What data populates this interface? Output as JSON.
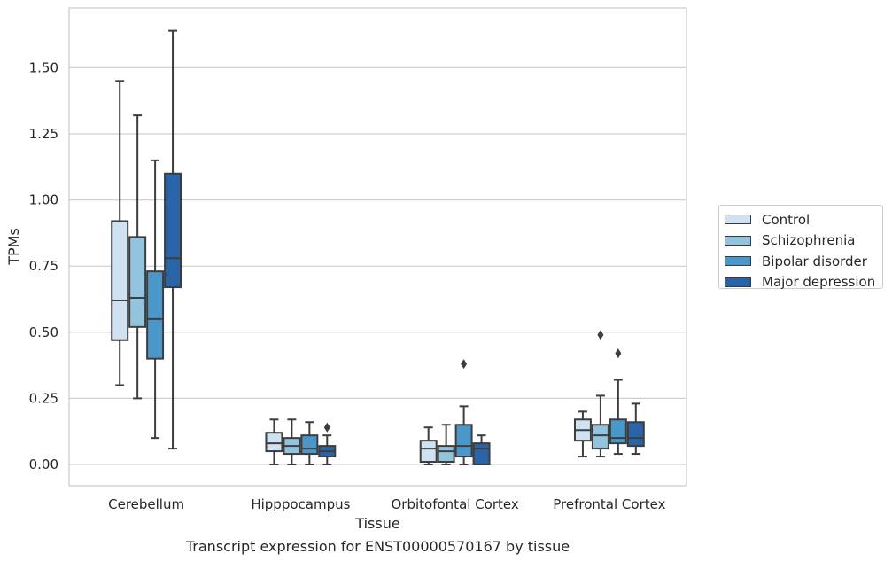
{
  "chart_data": {
    "type": "box",
    "title": "Transcript expression for ENST00000570167 by tissue",
    "xlabel": "Tissue",
    "ylabel": "TPMs",
    "ylim": [
      -0.08,
      1.72
    ],
    "yticks": [
      0.0,
      0.25,
      0.5,
      0.75,
      1.0,
      1.25,
      1.5
    ],
    "ytick_labels": [
      "0.00",
      "0.25",
      "0.50",
      "0.75",
      "1.00",
      "1.25",
      "1.50"
    ],
    "grid": "y",
    "legend_position": "right",
    "categories": [
      "Cerebellum",
      "Hipppocampus",
      "Orbitofontal Cortex",
      "Prefrontal Cortex"
    ],
    "series": [
      {
        "name": "Control",
        "color": "#cfe1f2",
        "boxes": [
          {
            "whislo": 0.3,
            "q1": 0.47,
            "med": 0.62,
            "q3": 0.92,
            "whishi": 1.45,
            "fliers": []
          },
          {
            "whislo": 0.0,
            "q1": 0.05,
            "med": 0.08,
            "q3": 0.12,
            "whishi": 0.17,
            "fliers": []
          },
          {
            "whislo": 0.0,
            "q1": 0.01,
            "med": 0.06,
            "q3": 0.09,
            "whishi": 0.14,
            "fliers": []
          },
          {
            "whislo": 0.03,
            "q1": 0.09,
            "med": 0.13,
            "q3": 0.17,
            "whishi": 0.2,
            "fliers": []
          }
        ]
      },
      {
        "name": "Schizophrenia",
        "color": "#93c4de",
        "boxes": [
          {
            "whislo": 0.25,
            "q1": 0.52,
            "med": 0.63,
            "q3": 0.86,
            "whishi": 1.32,
            "fliers": []
          },
          {
            "whislo": 0.0,
            "q1": 0.04,
            "med": 0.07,
            "q3": 0.1,
            "whishi": 0.17,
            "fliers": []
          },
          {
            "whislo": 0.0,
            "q1": 0.01,
            "med": 0.05,
            "q3": 0.07,
            "whishi": 0.15,
            "fliers": []
          },
          {
            "whislo": 0.03,
            "q1": 0.06,
            "med": 0.11,
            "q3": 0.15,
            "whishi": 0.26,
            "fliers": [
              0.49
            ]
          }
        ]
      },
      {
        "name": "Bipolar disorder",
        "color": "#4a98c9",
        "boxes": [
          {
            "whislo": 0.1,
            "q1": 0.4,
            "med": 0.55,
            "q3": 0.73,
            "whishi": 1.15,
            "fliers": []
          },
          {
            "whislo": 0.0,
            "q1": 0.04,
            "med": 0.06,
            "q3": 0.11,
            "whishi": 0.16,
            "fliers": []
          },
          {
            "whislo": 0.0,
            "q1": 0.03,
            "med": 0.07,
            "q3": 0.15,
            "whishi": 0.22,
            "fliers": [
              0.38
            ]
          },
          {
            "whislo": 0.04,
            "q1": 0.08,
            "med": 0.1,
            "q3": 0.17,
            "whishi": 0.32,
            "fliers": [
              0.42
            ]
          }
        ]
      },
      {
        "name": "Major depression",
        "color": "#2a64a8",
        "boxes": [
          {
            "whislo": 0.06,
            "q1": 0.67,
            "med": 0.78,
            "q3": 1.1,
            "whishi": 1.64,
            "fliers": []
          },
          {
            "whislo": 0.0,
            "q1": 0.03,
            "med": 0.05,
            "q3": 0.07,
            "whishi": 0.11,
            "fliers": [
              0.14
            ]
          },
          {
            "whislo": 0.0,
            "q1": 0.0,
            "med": 0.06,
            "q3": 0.08,
            "whishi": 0.11,
            "fliers": []
          },
          {
            "whislo": 0.04,
            "q1": 0.07,
            "med": 0.1,
            "q3": 0.16,
            "whishi": 0.23,
            "fliers": []
          }
        ]
      }
    ]
  }
}
